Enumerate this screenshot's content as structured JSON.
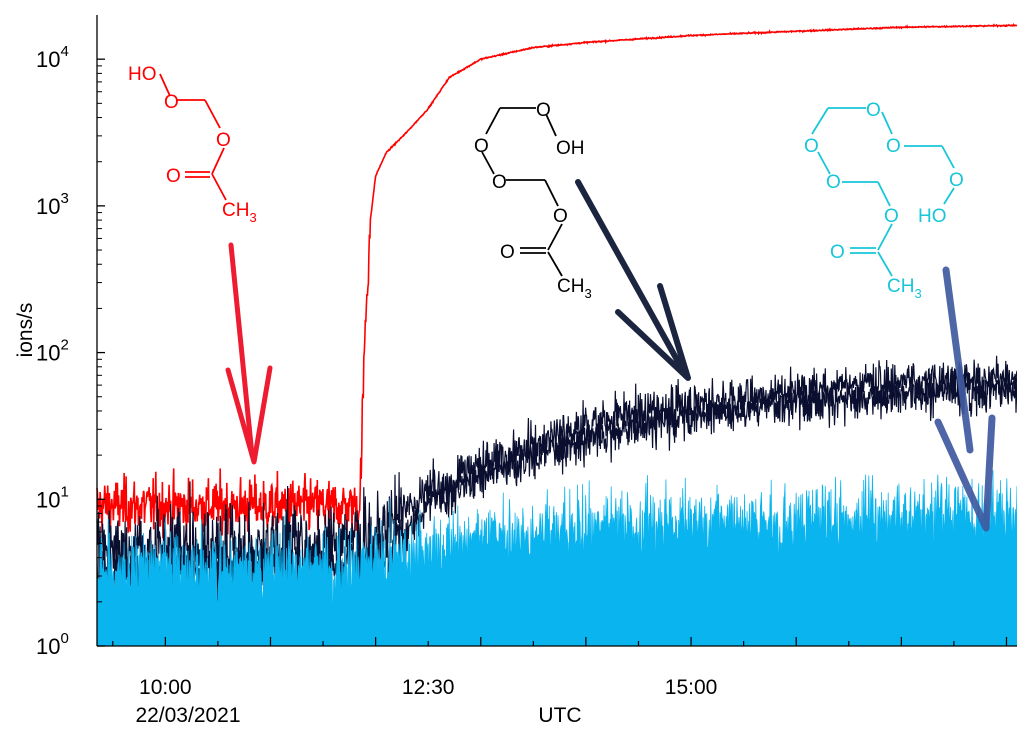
{
  "chart_data": {
    "type": "line",
    "title": "",
    "xlabel": "UTC",
    "ylabel": "ions/s",
    "yscale": "log",
    "ylim": [
      1,
      20000
    ],
    "xlim_hours": [
      9.35,
      18.1
    ],
    "date_label": "22/03/2021",
    "x_tick_labels": [
      {
        "label": "10:00",
        "hour": 10.0
      },
      {
        "label": "12:30",
        "hour": 12.5
      },
      {
        "label": "15:00",
        "hour": 15.0
      }
    ],
    "y_ticks": [
      {
        "base": "10",
        "exp": "0",
        "value": 1
      },
      {
        "base": "10",
        "exp": "1",
        "value": 10
      },
      {
        "base": "10",
        "exp": "2",
        "value": 100
      },
      {
        "base": "10",
        "exp": "3",
        "value": 1000
      },
      {
        "base": "10",
        "exp": "4",
        "value": 10000
      }
    ],
    "grid": false,
    "legend": "none",
    "series": [
      {
        "color": "#ff0000",
        "noise": 0.35,
        "x": [
          9.35,
          10.0,
          11.0,
          11.85,
          11.9,
          11.95,
          12.0,
          12.1,
          12.3,
          12.5,
          12.7,
          13.0,
          13.5,
          14.0,
          15.0,
          16.0,
          17.0,
          18.1
        ],
        "y": [
          9,
          9,
          9,
          9,
          150,
          800,
          1600,
          2300,
          3200,
          4600,
          7500,
          10000,
          12000,
          13000,
          14500,
          15500,
          16500,
          17000
        ]
      },
      {
        "color": "#0a0f30",
        "noise": 0.55,
        "x": [
          9.35,
          10.5,
          11.85,
          12.3,
          12.5,
          13.0,
          13.5,
          14.0,
          14.5,
          15.0,
          16.0,
          17.0,
          18.1
        ],
        "y": [
          4.5,
          4.5,
          5,
          8,
          11,
          17,
          24,
          31,
          38,
          44,
          55,
          62,
          68
        ]
      },
      {
        "color": "#0ab4ee",
        "noise": 0.5,
        "x": [
          9.35,
          11.8,
          12.5,
          13.0,
          14.0,
          15.0,
          16.0,
          17.0,
          18.1
        ],
        "y": [
          3.2,
          3.6,
          4.2,
          5.5,
          6.3,
          7.0,
          7.2,
          7.5,
          8.0
        ]
      }
    ],
    "annotations": {
      "red_structure": {
        "color": "#ff0000",
        "ho": "HO",
        "o": "O",
        "ch3": "CH",
        "sub": "3"
      },
      "black_structure": {
        "color": "#000000",
        "oh": "OH",
        "o": "O",
        "ch3": "CH",
        "sub": "3"
      },
      "cyan_structure": {
        "color": "#17c6d8",
        "ho": "HO",
        "o": "O",
        "ch3": "CH",
        "sub": "3"
      },
      "arrows": [
        {
          "color": "#ee1c30"
        },
        {
          "color": "#1c2540"
        },
        {
          "color": "#3f5aa0"
        }
      ]
    }
  }
}
